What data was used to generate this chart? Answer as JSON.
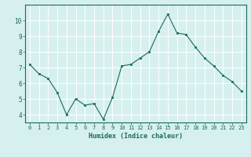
{
  "x": [
    0,
    1,
    2,
    3,
    4,
    5,
    6,
    7,
    8,
    9,
    10,
    11,
    12,
    13,
    14,
    15,
    16,
    17,
    18,
    19,
    20,
    21,
    22,
    23
  ],
  "y": [
    7.2,
    6.6,
    6.3,
    5.4,
    4.0,
    5.0,
    4.6,
    4.7,
    3.7,
    5.1,
    7.1,
    7.2,
    7.6,
    8.0,
    9.3,
    10.4,
    9.2,
    9.1,
    8.3,
    7.6,
    7.1,
    6.5,
    6.1,
    5.5
  ],
  "xlabel": "Humidex (Indice chaleur)",
  "ylim": [
    3.5,
    11.0
  ],
  "xlim": [
    -0.5,
    23.5
  ],
  "yticks": [
    4,
    5,
    6,
    7,
    8,
    9,
    10
  ],
  "xticks": [
    0,
    1,
    2,
    3,
    4,
    5,
    6,
    7,
    8,
    9,
    10,
    11,
    12,
    13,
    14,
    15,
    16,
    17,
    18,
    19,
    20,
    21,
    22,
    23
  ],
  "line_color": "#1a6b5a",
  "marker_color": "#1a6b5a",
  "bg_color": "#d6f0ef",
  "grid_color": "#ffffff",
  "axis_label_color": "#1a6b5a",
  "tick_color": "#1a6b5a"
}
